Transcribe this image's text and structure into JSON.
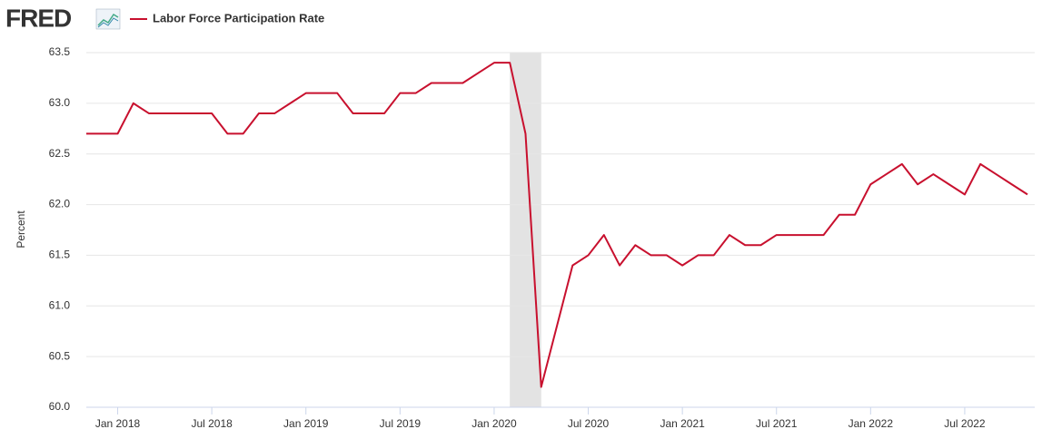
{
  "chart_data": {
    "type": "line",
    "logo": "FRED",
    "ylabel": "Percent",
    "x": [
      "2017-11",
      "2017-12",
      "2018-01",
      "2018-02",
      "2018-03",
      "2018-04",
      "2018-05",
      "2018-06",
      "2018-07",
      "2018-08",
      "2018-09",
      "2018-10",
      "2018-11",
      "2018-12",
      "2019-01",
      "2019-02",
      "2019-03",
      "2019-04",
      "2019-05",
      "2019-06",
      "2019-07",
      "2019-08",
      "2019-09",
      "2019-10",
      "2019-11",
      "2019-12",
      "2020-01",
      "2020-02",
      "2020-03",
      "2020-04",
      "2020-05",
      "2020-06",
      "2020-07",
      "2020-08",
      "2020-09",
      "2020-10",
      "2020-11",
      "2020-12",
      "2021-01",
      "2021-02",
      "2021-03",
      "2021-04",
      "2021-05",
      "2021-06",
      "2021-07",
      "2021-08",
      "2021-09",
      "2021-10",
      "2021-11",
      "2021-12",
      "2022-01",
      "2022-02",
      "2022-03",
      "2022-04",
      "2022-05",
      "2022-06",
      "2022-07",
      "2022-08",
      "2022-09",
      "2022-10",
      "2022-11"
    ],
    "series": [
      {
        "name": "Labor Force Participation Rate",
        "color": "#c8102e",
        "values": [
          62.7,
          62.7,
          62.7,
          63.0,
          62.9,
          62.9,
          62.9,
          62.9,
          62.9,
          62.7,
          62.7,
          62.9,
          62.9,
          63.0,
          63.1,
          63.1,
          63.1,
          62.9,
          62.9,
          62.9,
          63.1,
          63.1,
          63.2,
          63.2,
          63.2,
          63.3,
          63.4,
          63.4,
          62.7,
          60.2,
          60.8,
          61.4,
          61.5,
          61.7,
          61.4,
          61.6,
          61.5,
          61.5,
          61.4,
          61.5,
          61.5,
          61.7,
          61.6,
          61.6,
          61.7,
          61.7,
          61.7,
          61.7,
          61.9,
          61.9,
          62.2,
          62.3,
          62.4,
          62.2,
          62.3,
          62.2,
          62.1,
          62.4,
          62.3,
          62.2,
          62.1
        ]
      }
    ],
    "recessions": [
      {
        "start": "2020-02",
        "end": "2020-04"
      }
    ],
    "ylim": [
      60,
      63.5
    ],
    "yticks": [
      {
        "value": 60,
        "label": "60.0"
      },
      60.5,
      {
        "value": 61,
        "label": "61.0"
      },
      61.5,
      {
        "value": 62,
        "label": "62.0"
      },
      62.5,
      {
        "value": 63,
        "label": "63.0"
      },
      63.5
    ],
    "xticks": [
      {
        "value": "2018-01",
        "label": "Jan 2018"
      },
      {
        "value": "2018-07",
        "label": "Jul 2018"
      },
      {
        "value": "2019-01",
        "label": "Jan 2019"
      },
      {
        "value": "2019-07",
        "label": "Jul 2019"
      },
      {
        "value": "2020-01",
        "label": "Jan 2020"
      },
      {
        "value": "2020-07",
        "label": "Jul 2020"
      },
      {
        "value": "2021-01",
        "label": "Jan 2021"
      },
      {
        "value": "2021-07",
        "label": "Jul 2021"
      },
      {
        "value": "2022-01",
        "label": "Jan 2022"
      },
      {
        "value": "2022-07",
        "label": "Jul 2022"
      }
    ],
    "grid": true
  }
}
